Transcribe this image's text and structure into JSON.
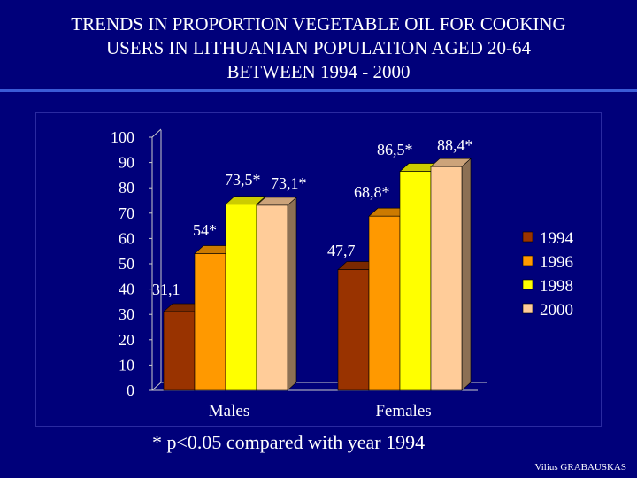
{
  "title_lines": [
    "TRENDS IN PROPORTION VEGETABLE OIL FOR COOKING",
    "USERS  IN  LITHUANIAN  POPULATION  AGED 20-64",
    "BETWEEN 1994 - 2000"
  ],
  "colors": {
    "background": "#00007a",
    "series": [
      "#993300",
      "#ff9900",
      "#ffff00",
      "#ffcc99"
    ],
    "axis": "#cccccc",
    "text": "#ffffff"
  },
  "chart_data": {
    "type": "bar",
    "title": "TRENDS IN PROPORTION VEGETABLE OIL FOR COOKING USERS IN LITHUANIAN POPULATION AGED 20-64 BETWEEN 1994 - 2000",
    "categories": [
      "Males",
      "Females"
    ],
    "ylim": [
      0,
      100
    ],
    "yticks": [
      0,
      10,
      20,
      30,
      40,
      50,
      60,
      70,
      80,
      90,
      100
    ],
    "legend_position": "right",
    "series": [
      {
        "name": "1994",
        "values": [
          31.1,
          47.7
        ],
        "labels": [
          "31,1",
          "47,7"
        ]
      },
      {
        "name": "1996",
        "values": [
          54,
          68.8
        ],
        "labels": [
          "54*",
          "68,8*"
        ]
      },
      {
        "name": "1998",
        "values": [
          73.5,
          86.5
        ],
        "labels": [
          "73,5*",
          "86,5*"
        ]
      },
      {
        "name": "2000",
        "values": [
          73.1,
          88.4
        ],
        "labels": [
          "73,1*",
          "88,4*"
        ]
      }
    ]
  },
  "footnote": "* p<0.05 compared with year 1994",
  "author": "Vilius GRABAUSKAS"
}
